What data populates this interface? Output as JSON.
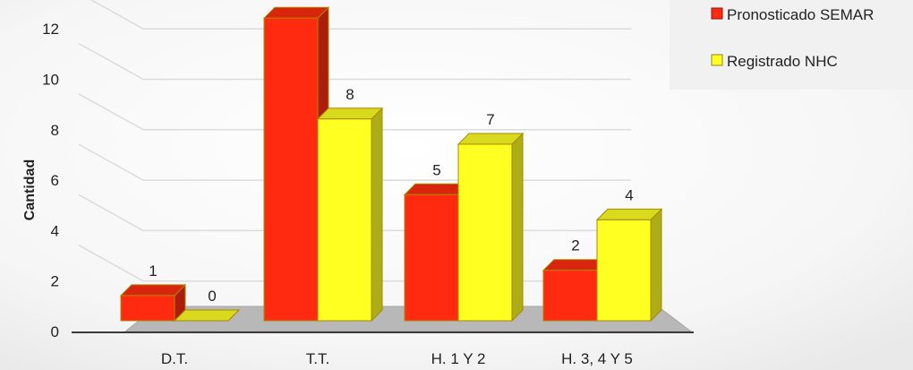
{
  "chart_data": {
    "type": "bar",
    "categories": [
      "D.T.",
      "T.T.",
      "H. 1 Y 2",
      "H. 3, 4 Y 5"
    ],
    "series": [
      {
        "name": "Pronosticado SEMAR",
        "values": [
          1,
          12,
          5,
          2
        ],
        "color": "#ff2a10"
      },
      {
        "name": "Registrado NHC",
        "values": [
          0,
          8,
          7,
          4
        ],
        "color": "#ffff22"
      }
    ],
    "ylabel": "Cantidad",
    "ylim": [
      0,
      12
    ],
    "yticks": [
      "0",
      "2",
      "4",
      "6",
      "8",
      "10",
      "12"
    ],
    "data_labels": [
      [
        "1",
        "12",
        "5",
        "2"
      ],
      [
        "0",
        "8",
        "7",
        "4"
      ]
    ],
    "grid": true,
    "legend": "top-right",
    "style": "3d-bar"
  }
}
